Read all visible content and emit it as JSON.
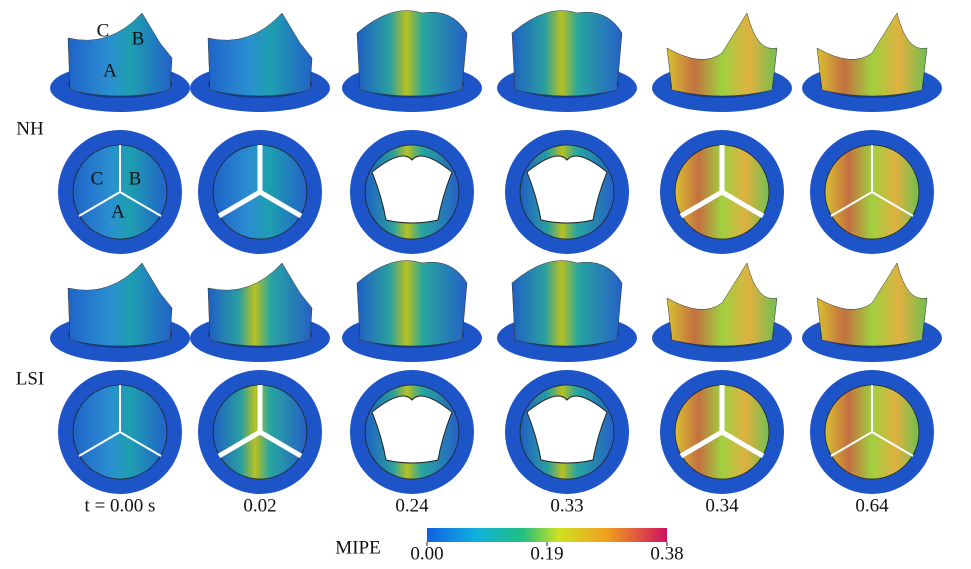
{
  "rows": [
    {
      "label": "NH"
    },
    {
      "label": "LSI"
    }
  ],
  "times": [
    "t = 0.00 s",
    "0.02",
    "0.24",
    "0.33",
    "0.34",
    "0.64"
  ],
  "leaflet_labels": {
    "side_view": [
      "C",
      "B",
      "A"
    ],
    "top_view": [
      "C",
      "B",
      "A"
    ]
  },
  "colorbar": {
    "label": "MIPE",
    "lim": [
      0,
      0.38
    ],
    "ticks": [
      {
        "value": 0,
        "label": "0.00"
      },
      {
        "value": 0.19,
        "label": "0.19"
      },
      {
        "value": 0.38,
        "label": "0.38"
      }
    ]
  }
}
